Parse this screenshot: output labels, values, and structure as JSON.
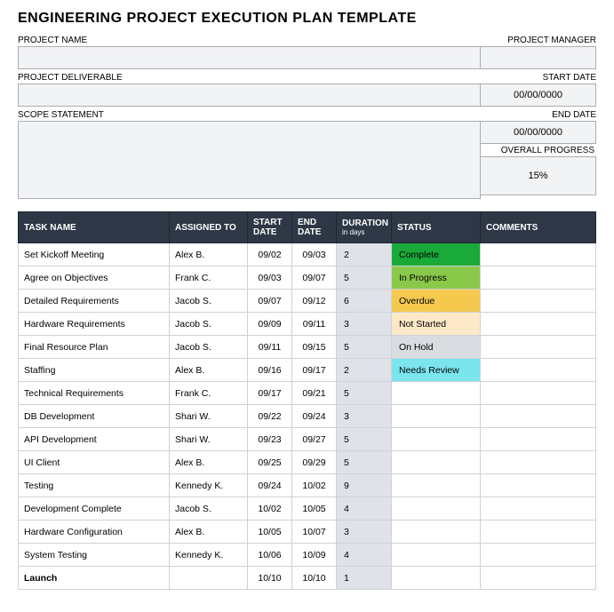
{
  "title": "ENGINEERING PROJECT EXECUTION PLAN TEMPLATE",
  "header": {
    "project_name_label": "PROJECT NAME",
    "project_name_value": "",
    "project_manager_label": "PROJECT MANAGER",
    "project_manager_value": "",
    "project_deliverable_label": "PROJECT DELIVERABLE",
    "project_deliverable_value": "",
    "start_date_label": "START DATE",
    "start_date_value": "00/00/0000",
    "scope_label": "SCOPE STATEMENT",
    "scope_value": "",
    "end_date_label": "END DATE",
    "end_date_value": "00/00/0000",
    "overall_progress_label": "OVERALL PROGRESS",
    "overall_progress_value": "15%"
  },
  "table": {
    "columns": {
      "task": "TASK NAME",
      "assigned": "ASSIGNED TO",
      "start": "START DATE",
      "end": "END DATE",
      "duration": "DURATION",
      "duration_sub": "in days",
      "status": "STATUS",
      "comments": "COMMENTS"
    },
    "status_colors": {
      "Complete": "#1aaa3a",
      "In Progress": "#8ac84a",
      "Overdue": "#f4c94e",
      "Not Started": "#fde9c8",
      "On Hold": "#d9dce1",
      "Needs Review": "#7be5ee",
      "": "#ffffff"
    },
    "rows": [
      {
        "task": "Set Kickoff Meeting",
        "assigned": "Alex B.",
        "start": "09/02",
        "end": "09/03",
        "duration": "2",
        "status": "Complete",
        "comments": ""
      },
      {
        "task": "Agree on Objectives",
        "assigned": "Frank C.",
        "start": "09/03",
        "end": "09/07",
        "duration": "5",
        "status": "In Progress",
        "comments": ""
      },
      {
        "task": "Detailed Requirements",
        "assigned": "Jacob S.",
        "start": "09/07",
        "end": "09/12",
        "duration": "6",
        "status": "Overdue",
        "comments": ""
      },
      {
        "task": "Hardware Requirements",
        "assigned": "Jacob S.",
        "start": "09/09",
        "end": "09/11",
        "duration": "3",
        "status": "Not Started",
        "comments": ""
      },
      {
        "task": "Final Resource Plan",
        "assigned": "Jacob S.",
        "start": "09/11",
        "end": "09/15",
        "duration": "5",
        "status": "On Hold",
        "comments": ""
      },
      {
        "task": "Staffing",
        "assigned": "Alex B.",
        "start": "09/16",
        "end": "09/17",
        "duration": "2",
        "status": "Needs Review",
        "comments": ""
      },
      {
        "task": "Technical Requirements",
        "assigned": "Frank C.",
        "start": "09/17",
        "end": "09/21",
        "duration": "5",
        "status": "",
        "comments": ""
      },
      {
        "task": "DB Development",
        "assigned": "Shari W.",
        "start": "09/22",
        "end": "09/24",
        "duration": "3",
        "status": "",
        "comments": ""
      },
      {
        "task": "API Development",
        "assigned": "Shari W.",
        "start": "09/23",
        "end": "09/27",
        "duration": "5",
        "status": "",
        "comments": ""
      },
      {
        "task": "UI Client",
        "assigned": "Alex B.",
        "start": "09/25",
        "end": "09/29",
        "duration": "5",
        "status": "",
        "comments": ""
      },
      {
        "task": "Testing",
        "assigned": "Kennedy K.",
        "start": "09/24",
        "end": "10/02",
        "duration": "9",
        "status": "",
        "comments": ""
      },
      {
        "task": "Development Complete",
        "assigned": "Jacob S.",
        "start": "10/02",
        "end": "10/05",
        "duration": "4",
        "status": "",
        "comments": ""
      },
      {
        "task": "Hardware Configuration",
        "assigned": "Alex B.",
        "start": "10/05",
        "end": "10/07",
        "duration": "3",
        "status": "",
        "comments": ""
      },
      {
        "task": "System Testing",
        "assigned": "Kennedy K.",
        "start": "10/06",
        "end": "10/09",
        "duration": "4",
        "status": "",
        "comments": ""
      },
      {
        "task": "Launch",
        "assigned": "",
        "start": "10/10",
        "end": "10/10",
        "duration": "1",
        "status": "",
        "comments": "",
        "bold": true
      }
    ]
  },
  "style": {
    "header_bg": "#2d3746",
    "header_border": "#1f2733",
    "cell_border": "#cfd2d6",
    "duration_bg": "#dfe2e8",
    "field_bg": "#f2f3f5",
    "field_border": "#a9adb3"
  }
}
